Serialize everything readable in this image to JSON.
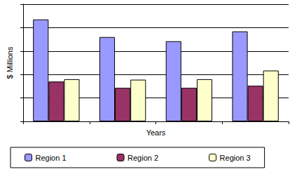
{
  "chart_data": {
    "type": "bar",
    "x_label": "Years",
    "y_label": "$ Millions",
    "categories": [
      null,
      null,
      null,
      null
    ],
    "series": [
      {
        "name": "Region 1",
        "color": "#9999ff",
        "values": [
          4.35,
          3.6,
          3.42,
          3.84
        ]
      },
      {
        "name": "Region 2",
        "color": "#993366",
        "values": [
          1.7,
          1.43,
          1.43,
          1.52
        ]
      },
      {
        "name": "Region 3",
        "color": "#ffffcc",
        "values": [
          1.8,
          1.78,
          1.8,
          2.17
        ]
      }
    ],
    "ylim": [
      0,
      5
    ],
    "yticks": [
      0,
      1,
      2,
      3,
      4,
      5
    ],
    "grid": true,
    "legend": "bottom",
    "tick_labels": false
  }
}
